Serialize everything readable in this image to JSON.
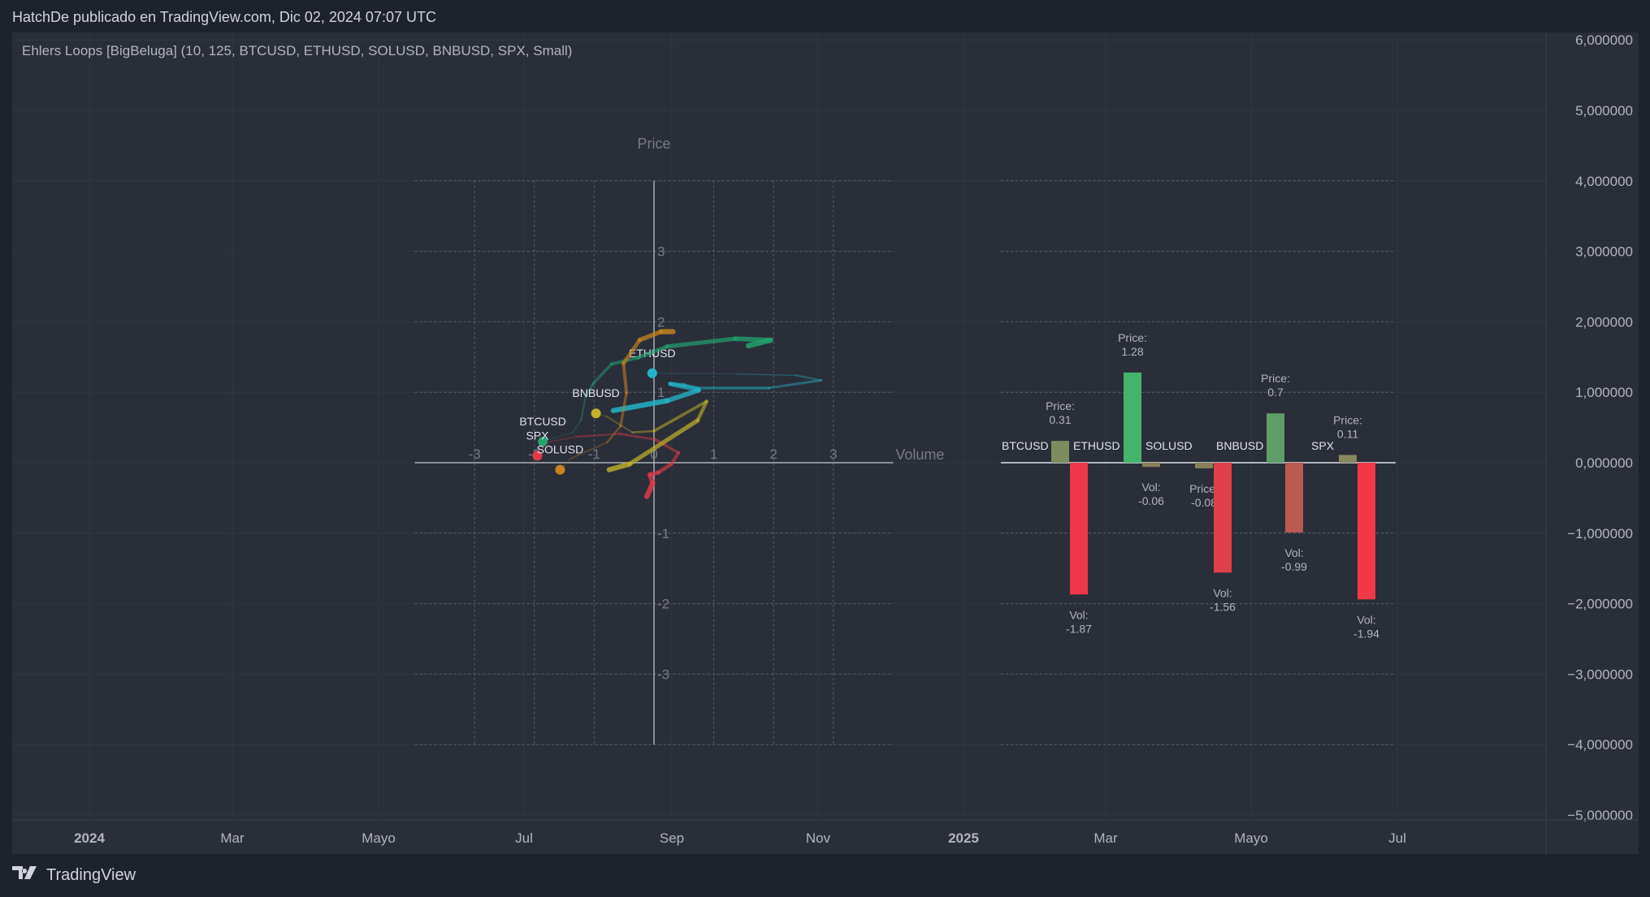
{
  "header": {
    "published": "HatchDe publicado en TradingView.com, Dic 02, 2024 07:07 UTC"
  },
  "indicator": {
    "title": "Ehlers Loops [BigBeluga] (10, 125, BTCUSD, ETHUSD, SOLUSD, BNBUSD, SPX, Small)"
  },
  "price_axis": {
    "labels": [
      "6,000000",
      "5,000000",
      "4,000000",
      "3,000000",
      "2,000000",
      "1,000000",
      "0,000000",
      "−1,000000",
      "−2,000000",
      "−3,000000",
      "−4,000000",
      "−5,000000"
    ],
    "values": [
      6,
      5,
      4,
      3,
      2,
      1,
      0,
      -1,
      -2,
      -3,
      -4,
      -5
    ]
  },
  "time_axis": {
    "labels": [
      {
        "text": "2024",
        "bold": true
      },
      {
        "text": "Mar"
      },
      {
        "text": "Mayo"
      },
      {
        "text": "Jul"
      },
      {
        "text": "Sep"
      },
      {
        "text": "Nov"
      },
      {
        "text": "2025",
        "bold": true
      },
      {
        "text": "Mar"
      },
      {
        "text": "Mayo"
      },
      {
        "text": "Jul"
      }
    ]
  },
  "footer": {
    "brand": "TradingView",
    "logo": "TV"
  },
  "chart_data": [
    {
      "type": "line",
      "ylabel": "Price",
      "xlabel": "Volume",
      "xlim": [
        -4,
        4
      ],
      "ylim": [
        -4,
        4
      ],
      "x_ticks": [
        -3,
        -2,
        -1,
        0,
        1,
        2,
        3
      ],
      "y_ticks": [
        3,
        2,
        1,
        -1,
        -2,
        -3
      ],
      "grid": true,
      "series": [
        {
          "name": "ETHUSD",
          "color": "#22b5c8",
          "points": [
            [
              -0.03,
              1.27
            ],
            [
              1.39,
              1.26
            ],
            [
              2.38,
              1.24
            ],
            [
              2.8,
              1.17
            ],
            [
              1.92,
              1.06
            ],
            [
              0.73,
              1.06
            ],
            [
              0.51,
              1.1
            ],
            [
              0.27,
              1.12
            ],
            [
              0.75,
              1.03
            ],
            [
              0.22,
              0.88
            ],
            [
              -0.68,
              0.74
            ]
          ]
        },
        {
          "name": "BTCUSD",
          "color": "#22a36e",
          "points": [
            [
              -1.86,
              0.3
            ],
            [
              -1.36,
              0.43
            ],
            [
              -1.22,
              0.6
            ],
            [
              -1.14,
              0.95
            ],
            [
              -1.02,
              1.12
            ],
            [
              -0.71,
              1.4
            ],
            [
              -0.27,
              1.49
            ],
            [
              0.22,
              1.65
            ],
            [
              1.36,
              1.76
            ],
            [
              1.95,
              1.74
            ],
            [
              1.58,
              1.66
            ]
          ]
        },
        {
          "name": "SPX",
          "color": "#e03a48",
          "points": [
            [
              -1.95,
              0.1
            ],
            [
              -1.78,
              0.29
            ],
            [
              -1.29,
              0.37
            ],
            [
              -0.58,
              0.41
            ],
            [
              0.02,
              0.33
            ],
            [
              0.41,
              0.14
            ],
            [
              0.29,
              -0.02
            ],
            [
              0.07,
              -0.14
            ],
            [
              -0.07,
              -0.17
            ],
            [
              -0.02,
              -0.29
            ],
            [
              -0.12,
              -0.48
            ]
          ]
        },
        {
          "name": "SOLUSD",
          "color": "#c8821f",
          "points": [
            [
              -1.57,
              -0.1
            ],
            [
              -1.39,
              0.06
            ],
            [
              -0.78,
              0.29
            ],
            [
              -0.56,
              0.52
            ],
            [
              -0.46,
              0.99
            ],
            [
              -0.51,
              1.41
            ],
            [
              -0.24,
              1.74
            ],
            [
              0.12,
              1.86
            ],
            [
              0.32,
              1.86
            ]
          ]
        },
        {
          "name": "BNBUSD",
          "color": "#c2b22a",
          "points": [
            [
              -0.97,
              0.7
            ],
            [
              -0.8,
              0.66
            ],
            [
              -0.36,
              0.43
            ],
            [
              0.0,
              0.45
            ],
            [
              0.88,
              0.87
            ],
            [
              0.73,
              0.6
            ],
            [
              -0.41,
              -0.02
            ],
            [
              -0.75,
              -0.1
            ]
          ]
        }
      ]
    },
    {
      "type": "bar",
      "categories": [
        "BTCUSD",
        "ETHUSD",
        "SOLUSD",
        "BNBUSD",
        "SPX"
      ],
      "price_label": "Price:",
      "vol_label": "Vol:",
      "series": [
        {
          "name": "Price",
          "values": [
            0.31,
            1.28,
            -0.08,
            0.7,
            0.11
          ],
          "colors": [
            "#7d8c5e",
            "#44b46c",
            "#8a7f57",
            "#5f9e68",
            "#8a8760"
          ]
        },
        {
          "name": "Vol",
          "values": [
            -1.87,
            -0.06,
            -1.56,
            -0.99,
            -1.94
          ],
          "colors": [
            "#f0364a",
            "#8a7f57",
            "#e0404a",
            "#bb5a50",
            "#f03848"
          ]
        }
      ]
    }
  ]
}
